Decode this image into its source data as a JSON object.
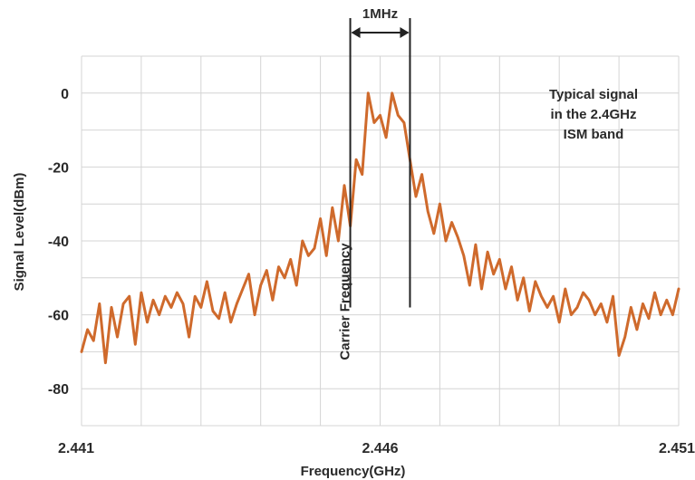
{
  "chart_data": {
    "type": "line",
    "xlabel": "Frequency(GHz)",
    "ylabel": "Signal Level(dBm)",
    "xlim": [
      2.441,
      2.451
    ],
    "ylim": [
      -90,
      10
    ],
    "x_ticks": [
      {
        "value": 2.441,
        "label": "2.441"
      },
      {
        "value": 2.446,
        "label": "2.446"
      },
      {
        "value": 2.451,
        "label": "2.451"
      }
    ],
    "y_ticks": [
      {
        "value": 0,
        "label": "0"
      },
      {
        "value": -20,
        "label": "-20"
      },
      {
        "value": -40,
        "label": "-40"
      },
      {
        "value": -60,
        "label": "-60"
      },
      {
        "value": -80,
        "label": "-80"
      }
    ],
    "grid": true,
    "line_color": "#cf6a2c",
    "annotations": {
      "bandwidth_label": "1MHz",
      "carrier_label": "Carrier Frequency",
      "note_lines": [
        "Typical signal",
        "in the 2.4GHz",
        "ISM band"
      ]
    },
    "markers": {
      "left_x": 2.4455,
      "right_x": 2.4465,
      "bottom_y": -58
    },
    "series": [
      {
        "x": [
          2.441,
          2.4411,
          2.4412,
          2.4413,
          2.4414,
          2.4415,
          2.4416,
          2.4417,
          2.4418,
          2.4419,
          2.442,
          2.4421,
          2.4422,
          2.4423,
          2.4424,
          2.4425,
          2.4426,
          2.4427,
          2.4428,
          2.4429,
          2.443,
          2.4431,
          2.4432,
          2.4433,
          2.4434,
          2.4435,
          2.4436,
          2.4437,
          2.4438,
          2.4439,
          2.444,
          2.4441,
          2.4442,
          2.4443,
          2.4444,
          2.4445,
          2.4446,
          2.4447,
          2.4448,
          2.4449,
          2.445,
          2.4451,
          2.4452,
          2.4453,
          2.4454,
          2.4455,
          2.4456,
          2.4457,
          2.4458,
          2.4459,
          2.446,
          2.4461,
          2.4462,
          2.4463,
          2.4464,
          2.4465,
          2.4466,
          2.4467,
          2.4468,
          2.4469,
          2.447,
          2.4471,
          2.4472,
          2.4473,
          2.4474,
          2.4475,
          2.4476,
          2.4477,
          2.4478,
          2.4479,
          2.448,
          2.4481,
          2.4482,
          2.4483,
          2.4484,
          2.4485,
          2.4486,
          2.4487,
          2.4488,
          2.4489,
          2.449,
          2.4491,
          2.4492,
          2.4493,
          2.4494,
          2.4495,
          2.4496,
          2.4497,
          2.4498,
          2.4499,
          2.45,
          2.4501,
          2.4502,
          2.4503,
          2.4504,
          2.4505,
          2.4506,
          2.4507,
          2.4508,
          2.4509,
          2.451
        ],
        "values": [
          -70,
          -64,
          -67,
          -57,
          -73,
          -58,
          -66,
          -57,
          -55,
          -68,
          -54,
          -62,
          -56,
          -60,
          -55,
          -58,
          -54,
          -57,
          -66,
          -55,
          -58,
          -51,
          -59,
          -61,
          -54,
          -62,
          -57,
          -53,
          -49,
          -60,
          -52,
          -48,
          -56,
          -47,
          -50,
          -45,
          -52,
          -40,
          -44,
          -42,
          -34,
          -44,
          -31,
          -40,
          -25,
          -36,
          -18,
          -22,
          0,
          -8,
          -6,
          -12,
          0,
          -6,
          -8,
          -18,
          -28,
          -22,
          -32,
          -38,
          -30,
          -40,
          -35,
          -39,
          -44,
          -52,
          -41,
          -53,
          -43,
          -49,
          -45,
          -53,
          -47,
          -56,
          -50,
          -59,
          -51,
          -55,
          -58,
          -55,
          -62,
          -53,
          -60,
          -58,
          -54,
          -56,
          -60,
          -57,
          -62,
          -55,
          -71,
          -66,
          -58,
          -64,
          -57,
          -61,
          -54,
          -60,
          -56,
          -60,
          -53
        ]
      }
    ]
  }
}
